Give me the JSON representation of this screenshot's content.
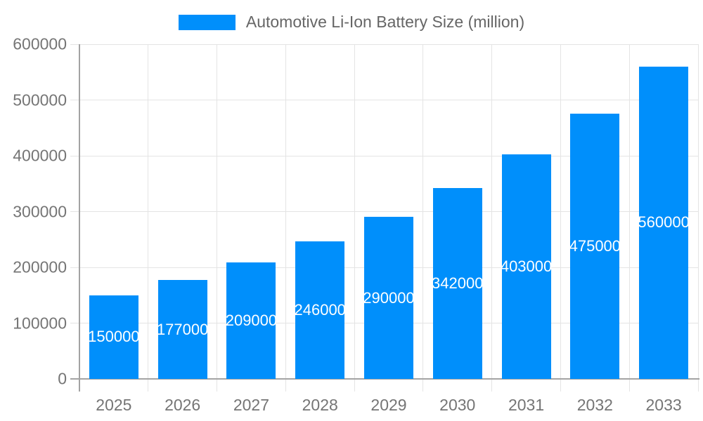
{
  "chart_data": {
    "type": "bar",
    "title": "",
    "series_label": "Automotive Li-Ion Battery Size (million)",
    "categories": [
      "2025",
      "2026",
      "2027",
      "2028",
      "2029",
      "2030",
      "2031",
      "2032",
      "2033"
    ],
    "values": [
      150000,
      177000,
      209000,
      246000,
      290000,
      342000,
      403000,
      475000,
      560000
    ],
    "bar_value_labels": [
      "150000",
      "177000",
      "209000",
      "246000",
      "290000",
      "342000",
      "403000",
      "475000",
      "560000"
    ],
    "xlabel": "",
    "ylabel": "",
    "ylim": [
      0,
      600000
    ],
    "ytick_step": 100000,
    "ytick_labels": [
      "0",
      "100000",
      "200000",
      "300000",
      "400000",
      "500000",
      "600000"
    ],
    "grid": "on",
    "legend_position": "top",
    "colors": {
      "bar": "#008FFB",
      "bar_label_text": "#FFFFFF",
      "axis_text": "#757575",
      "legend_text": "#666666",
      "gridline": "#E4E4E4",
      "axis_line": "#A3A3A3",
      "background": "#FFFFFF"
    }
  }
}
